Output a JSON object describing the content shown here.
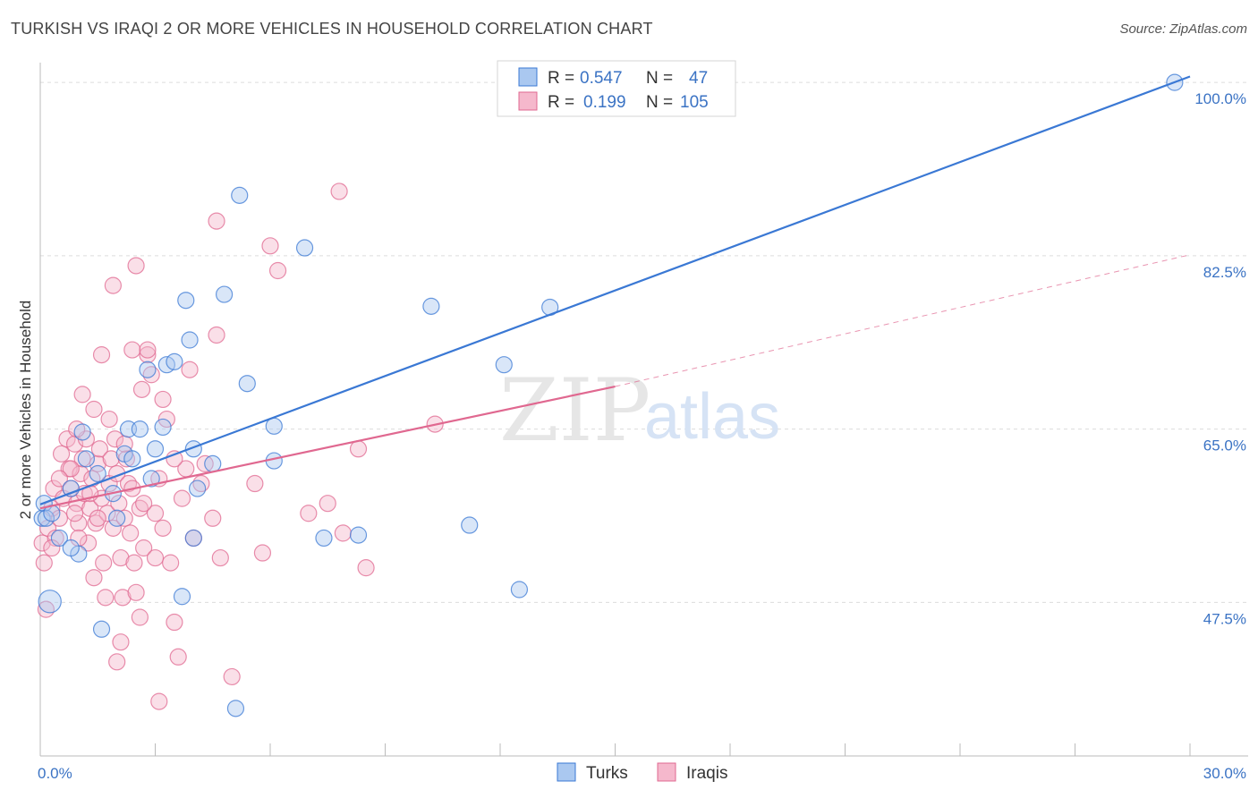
{
  "header": {
    "title": "TURKISH VS IRAQI 2 OR MORE VEHICLES IN HOUSEHOLD CORRELATION CHART",
    "source": "Source: ZipAtlas.com"
  },
  "watermark": {
    "zip": "ZIP",
    "atlas": "atlas"
  },
  "colors": {
    "turks": "#3a78d4",
    "turks_fill": "#aac8f0",
    "iraqis": "#e06890",
    "iraqis_fill": "#f5b8cc",
    "tick": "#3b73c4",
    "grid": "#dcdcdc"
  },
  "legend": {
    "rows": [
      {
        "r_label": "R =",
        "r_value": "0.547",
        "n_label": "N =",
        "n_value": "47"
      },
      {
        "r_label": "R =",
        "r_value": "0.199",
        "n_label": "N =",
        "n_value": "105"
      }
    ]
  },
  "bottom_legend": [
    "Turks",
    "Iraqis"
  ],
  "chart_data": {
    "type": "scatter",
    "title": "TURKISH VS IRAQI 2 OR MORE VEHICLES IN HOUSEHOLD CORRELATION CHART",
    "xlabel": "",
    "ylabel": "2 or more Vehicles in Household",
    "xlim": [
      0,
      30
    ],
    "ylim": [
      32,
      102
    ],
    "x_tick_labels": [
      "0.0%",
      "30.0%"
    ],
    "y_ticks": [
      47.5,
      65.0,
      82.5,
      100.0
    ],
    "y_tick_labels": [
      "47.5%",
      "65.0%",
      "82.5%",
      "100.0%"
    ],
    "grid": true,
    "legend_position": "top-center",
    "series": [
      {
        "name": "Turks",
        "R": 0.547,
        "N": 47,
        "trend": {
          "x": [
            0,
            30
          ],
          "y": [
            57.4,
            100.6
          ]
        },
        "points": [
          [
            0.05,
            56.0,
            1
          ],
          [
            0.1,
            57.5,
            1
          ],
          [
            0.15,
            56.0,
            1
          ],
          [
            0.3,
            56.5,
            1
          ],
          [
            0.5,
            54.0,
            1
          ],
          [
            0.25,
            47.6,
            1.4
          ],
          [
            0.8,
            59.0,
            1
          ],
          [
            1.1,
            64.7,
            1
          ],
          [
            1.2,
            62.0,
            1
          ],
          [
            1.5,
            60.5,
            1
          ],
          [
            1.9,
            58.5,
            1
          ],
          [
            2.0,
            56.0,
            1
          ],
          [
            2.2,
            62.5,
            1
          ],
          [
            2.3,
            65.0,
            1
          ],
          [
            2.4,
            62.0,
            1
          ],
          [
            2.6,
            65.0,
            1
          ],
          [
            2.8,
            71.0,
            1
          ],
          [
            2.9,
            60.0,
            1
          ],
          [
            3.0,
            63.0,
            1
          ],
          [
            3.2,
            65.2,
            1
          ],
          [
            3.3,
            71.5,
            1
          ],
          [
            3.5,
            71.8,
            1
          ],
          [
            3.9,
            74.0,
            1
          ],
          [
            4.0,
            63.0,
            1
          ],
          [
            4.1,
            59.0,
            1
          ],
          [
            3.8,
            78.0,
            1
          ],
          [
            4.5,
            61.5,
            1
          ],
          [
            4.8,
            78.6,
            1
          ],
          [
            5.2,
            88.6,
            1
          ],
          [
            5.4,
            69.6,
            1
          ],
          [
            6.1,
            65.3,
            1
          ],
          [
            6.9,
            83.3,
            1
          ],
          [
            7.4,
            54.0,
            1
          ],
          [
            8.3,
            54.3,
            1
          ],
          [
            10.2,
            77.4,
            1
          ],
          [
            11.2,
            55.3,
            1
          ],
          [
            12.1,
            71.5,
            1
          ],
          [
            12.5,
            48.8,
            1
          ],
          [
            13.3,
            77.3,
            1
          ],
          [
            4.0,
            54.0,
            1
          ],
          [
            3.7,
            48.1,
            1
          ],
          [
            1.6,
            44.8,
            1
          ],
          [
            5.1,
            36.8,
            1
          ],
          [
            1.0,
            52.4,
            1
          ],
          [
            6.1,
            61.8,
            1
          ],
          [
            29.6,
            100.0,
            1
          ],
          [
            0.8,
            53.0,
            1
          ]
        ]
      },
      {
        "name": "Iraqis",
        "R": 0.199,
        "N": 105,
        "trend": {
          "x": [
            0,
            15
          ],
          "y": [
            57.0,
            69.3
          ]
        },
        "trend_dashed": {
          "x": [
            15,
            30
          ],
          "y": [
            69.3,
            82.6
          ]
        },
        "points": [
          [
            0.05,
            53.5,
            1
          ],
          [
            0.1,
            51.5,
            1
          ],
          [
            0.15,
            46.8,
            1
          ],
          [
            0.2,
            55.0,
            1
          ],
          [
            0.3,
            57.0,
            1
          ],
          [
            0.35,
            59.0,
            1
          ],
          [
            0.4,
            54.0,
            1
          ],
          [
            0.5,
            56.0,
            1
          ],
          [
            0.55,
            62.5,
            1
          ],
          [
            0.6,
            58.0,
            1
          ],
          [
            0.7,
            64.0,
            1
          ],
          [
            0.75,
            61.0,
            1
          ],
          [
            0.8,
            59.0,
            1
          ],
          [
            0.9,
            63.5,
            1
          ],
          [
            0.95,
            57.5,
            1
          ],
          [
            1.0,
            55.5,
            1
          ],
          [
            1.05,
            60.5,
            1
          ],
          [
            1.1,
            62.0,
            1
          ],
          [
            1.15,
            58.5,
            1
          ],
          [
            1.2,
            64.0,
            1
          ],
          [
            1.25,
            53.5,
            1
          ],
          [
            1.3,
            57.0,
            1
          ],
          [
            1.35,
            60.0,
            1
          ],
          [
            1.4,
            67.0,
            1
          ],
          [
            1.45,
            55.5,
            1
          ],
          [
            1.5,
            61.5,
            1
          ],
          [
            1.55,
            63.0,
            1
          ],
          [
            1.6,
            58.0,
            1
          ],
          [
            1.65,
            51.5,
            1
          ],
          [
            1.7,
            48.0,
            1
          ],
          [
            1.75,
            56.5,
            1
          ],
          [
            1.8,
            59.5,
            1
          ],
          [
            1.85,
            62.0,
            1
          ],
          [
            1.9,
            55.0,
            1
          ],
          [
            1.95,
            64.0,
            1
          ],
          [
            2.0,
            60.5,
            1
          ],
          [
            2.05,
            57.5,
            1
          ],
          [
            2.1,
            52.0,
            1
          ],
          [
            2.15,
            48.0,
            1
          ],
          [
            2.2,
            56.0,
            1
          ],
          [
            2.25,
            62.0,
            1
          ],
          [
            2.3,
            59.5,
            1
          ],
          [
            2.35,
            54.5,
            1
          ],
          [
            2.4,
            73.0,
            1
          ],
          [
            2.45,
            51.5,
            1
          ],
          [
            2.5,
            48.5,
            1
          ],
          [
            2.6,
            57.0,
            1
          ],
          [
            2.65,
            69.0,
            1
          ],
          [
            2.7,
            53.0,
            1
          ],
          [
            2.8,
            72.5,
            1
          ],
          [
            2.9,
            70.5,
            1
          ],
          [
            3.0,
            56.5,
            1
          ],
          [
            3.1,
            60.0,
            1
          ],
          [
            3.2,
            55.0,
            1
          ],
          [
            3.3,
            66.0,
            1
          ],
          [
            3.4,
            51.5,
            1
          ],
          [
            3.5,
            45.5,
            1
          ],
          [
            3.6,
            42.0,
            1
          ],
          [
            3.7,
            58.0,
            1
          ],
          [
            3.8,
            61.0,
            1
          ],
          [
            3.9,
            71.0,
            1
          ],
          [
            4.0,
            54.0,
            1
          ],
          [
            4.2,
            59.5,
            1
          ],
          [
            4.3,
            61.5,
            1
          ],
          [
            4.5,
            56.0,
            1
          ],
          [
            4.6,
            74.5,
            1
          ],
          [
            4.7,
            52.0,
            1
          ],
          [
            5.0,
            40.0,
            1
          ],
          [
            5.6,
            59.5,
            1
          ],
          [
            5.8,
            52.5,
            1
          ],
          [
            6.0,
            83.5,
            1
          ],
          [
            6.2,
            81.0,
            1
          ],
          [
            7.0,
            56.5,
            1
          ],
          [
            7.5,
            57.5,
            1
          ],
          [
            7.8,
            89.0,
            1
          ],
          [
            7.9,
            54.5,
            1
          ],
          [
            8.3,
            63.0,
            1
          ],
          [
            8.5,
            51.0,
            1
          ],
          [
            10.3,
            65.5,
            1
          ],
          [
            4.6,
            86.0,
            1
          ],
          [
            2.5,
            81.5,
            1
          ],
          [
            1.6,
            72.5,
            1
          ],
          [
            1.9,
            79.5,
            1
          ],
          [
            1.1,
            68.5,
            1
          ],
          [
            2.8,
            73.0,
            1
          ],
          [
            3.1,
            37.5,
            1
          ],
          [
            2.0,
            41.5,
            1
          ],
          [
            2.1,
            43.5,
            1
          ],
          [
            1.4,
            50.0,
            1
          ],
          [
            0.8,
            61.0,
            1
          ],
          [
            0.95,
            65.0,
            1
          ],
          [
            0.5,
            60.0,
            1
          ],
          [
            1.3,
            58.5,
            1
          ],
          [
            2.6,
            46.0,
            1
          ],
          [
            3.0,
            52.0,
            1
          ],
          [
            3.2,
            68.0,
            1
          ],
          [
            3.5,
            62.0,
            1
          ],
          [
            1.5,
            56.0,
            1
          ],
          [
            1.0,
            54.0,
            1
          ],
          [
            2.2,
            63.5,
            1
          ],
          [
            2.4,
            59.0,
            1
          ],
          [
            0.9,
            56.5,
            1
          ],
          [
            1.8,
            66.0,
            1
          ],
          [
            0.3,
            53.0,
            1
          ],
          [
            2.7,
            57.5,
            1
          ]
        ]
      }
    ]
  }
}
